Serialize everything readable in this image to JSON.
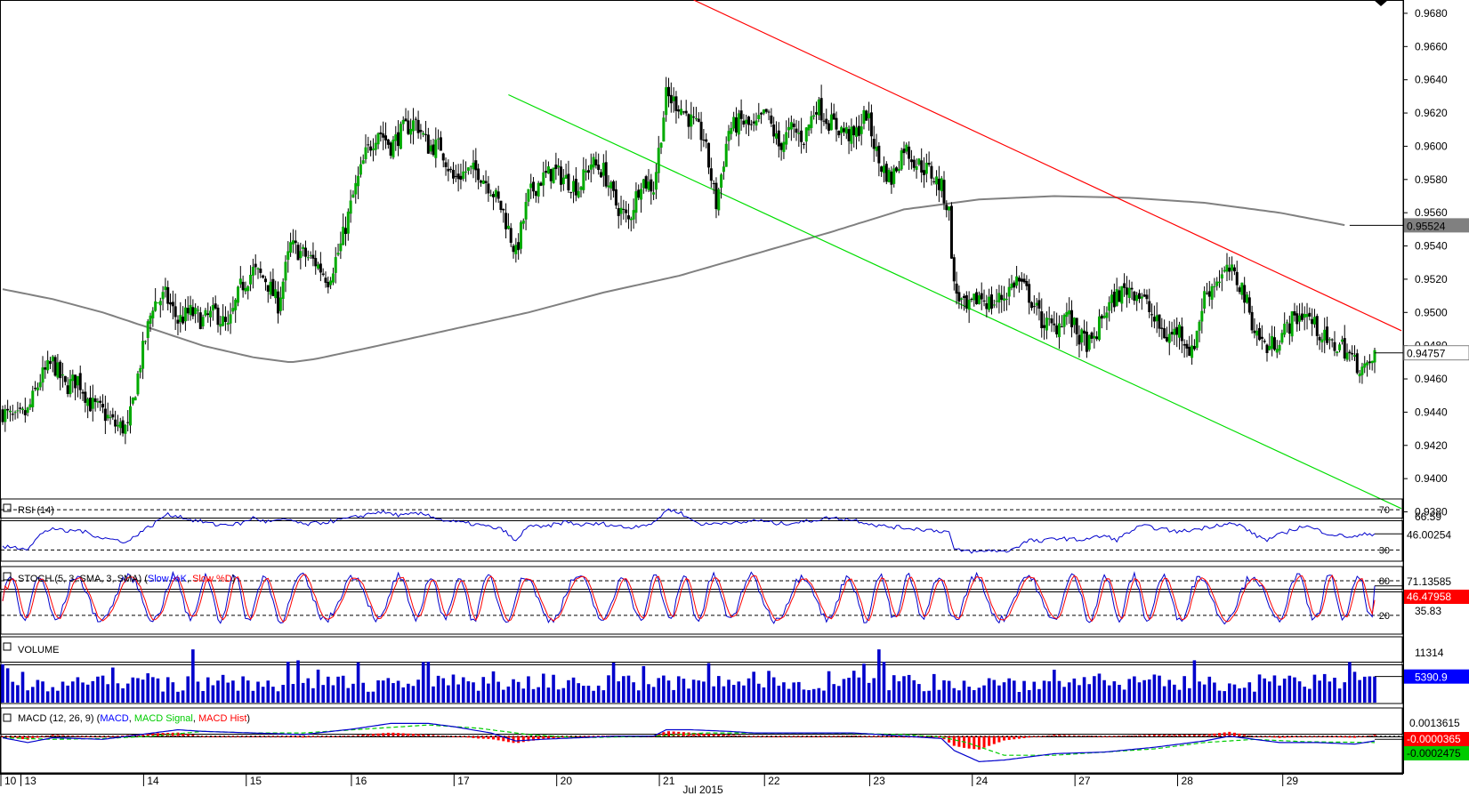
{
  "chart_data": {
    "type": "candlestick",
    "instrument_hint": "",
    "colors": {
      "bull": "#00aa00",
      "bear": "#000000",
      "ma": "#808080",
      "trend_upper": "#ff0000",
      "trend_lower": "#00dd00",
      "rsi": "#0000cc",
      "stoch_k": "#0000cc",
      "stoch_d": "#ff0000",
      "volume": "#0000cc",
      "macd": "#0000cc",
      "macd_signal": "#00cc00",
      "macd_hist": "#ff0000",
      "label_dark": "#404040",
      "label_blue": "#0000ff",
      "label_red": "#ff0000",
      "label_green": "#00cc00"
    },
    "price": {
      "ylim": [
        0.9376,
        0.9688
      ],
      "ticks": [
        "0.9680",
        "0.9660",
        "0.9640",
        "0.9620",
        "0.9600",
        "0.9580",
        "0.9560",
        "0.9540",
        "0.9520",
        "0.9500",
        "0.9480",
        "0.9460",
        "0.9440",
        "0.9420",
        "0.9400",
        "0.9380"
      ],
      "current_label": "0.94757",
      "current_value": 0.94757,
      "ma_label": "0.95524",
      "ma_value": 0.95524,
      "close_path": [
        [
          0,
          0.944
        ],
        [
          5,
          0.9435
        ],
        [
          10,
          0.944
        ],
        [
          15,
          0.946
        ],
        [
          20,
          0.947
        ],
        [
          25,
          0.9455
        ],
        [
          30,
          0.946
        ],
        [
          35,
          0.9445
        ],
        [
          40,
          0.944
        ],
        [
          45,
          0.9432
        ],
        [
          50,
          0.943
        ],
        [
          55,
          0.947
        ],
        [
          60,
          0.9505
        ],
        [
          65,
          0.951
        ],
        [
          70,
          0.9495
        ],
        [
          75,
          0.95
        ],
        [
          80,
          0.9495
        ],
        [
          85,
          0.95
        ],
        [
          90,
          0.949
        ],
        [
          95,
          0.9515
        ],
        [
          100,
          0.9525
        ],
        [
          105,
          0.952
        ],
        [
          110,
          0.9505
        ],
        [
          115,
          0.954
        ],
        [
          120,
          0.9535
        ],
        [
          125,
          0.953
        ],
        [
          130,
          0.952
        ],
        [
          135,
          0.954
        ],
        [
          140,
          0.957
        ],
        [
          145,
          0.9595
        ],
        [
          150,
          0.961
        ],
        [
          155,
          0.96
        ],
        [
          160,
          0.961
        ],
        [
          165,
          0.9615
        ],
        [
          170,
          0.96
        ],
        [
          175,
          0.96
        ],
        [
          180,
          0.958
        ],
        [
          185,
          0.9585
        ],
        [
          190,
          0.9585
        ],
        [
          195,
          0.9575
        ],
        [
          200,
          0.956
        ],
        [
          205,
          0.9535
        ],
        [
          210,
          0.957
        ],
        [
          215,
          0.958
        ],
        [
          220,
          0.9585
        ],
        [
          225,
          0.958
        ],
        [
          230,
          0.9575
        ],
        [
          235,
          0.959
        ],
        [
          240,
          0.9585
        ],
        [
          245,
          0.9565
        ],
        [
          250,
          0.9555
        ],
        [
          255,
          0.958
        ],
        [
          260,
          0.9575
        ],
        [
          265,
          0.963
        ],
        [
          270,
          0.9625
        ],
        [
          275,
          0.9615
        ],
        [
          280,
          0.9605
        ],
        [
          285,
          0.9565
        ],
        [
          290,
          0.961
        ],
        [
          295,
          0.9615
        ],
        [
          300,
          0.961
        ],
        [
          305,
          0.962
        ],
        [
          310,
          0.96
        ],
        [
          315,
          0.961
        ],
        [
          320,
          0.9605
        ],
        [
          325,
          0.9625
        ],
        [
          330,
          0.9615
        ],
        [
          335,
          0.961
        ],
        [
          340,
          0.9605
        ],
        [
          345,
          0.962
        ],
        [
          350,
          0.959
        ],
        [
          355,
          0.958
        ],
        [
          360,
          0.96
        ],
        [
          365,
          0.959
        ],
        [
          370,
          0.9585
        ],
        [
          375,
          0.9575
        ],
        [
          378,
          0.956
        ],
        [
          380,
          0.9515
        ],
        [
          385,
          0.95
        ],
        [
          390,
          0.951
        ],
        [
          395,
          0.9505
        ],
        [
          400,
          0.951
        ],
        [
          405,
          0.952
        ],
        [
          410,
          0.951
        ],
        [
          415,
          0.9495
        ],
        [
          420,
          0.949
        ],
        [
          425,
          0.95
        ],
        [
          430,
          0.9485
        ],
        [
          435,
          0.948
        ],
        [
          440,
          0.95
        ],
        [
          445,
          0.951
        ],
        [
          450,
          0.9515
        ],
        [
          455,
          0.951
        ],
        [
          460,
          0.9495
        ],
        [
          465,
          0.9485
        ],
        [
          470,
          0.949
        ],
        [
          475,
          0.9475
        ],
        [
          480,
          0.951
        ],
        [
          485,
          0.952
        ],
        [
          490,
          0.9525
        ],
        [
          495,
          0.9515
        ],
        [
          500,
          0.949
        ],
        [
          505,
          0.9478
        ],
        [
          510,
          0.9485
        ],
        [
          515,
          0.9495
        ],
        [
          520,
          0.95
        ],
        [
          525,
          0.949
        ],
        [
          530,
          0.948
        ],
        [
          535,
          0.948
        ],
        [
          540,
          0.947
        ],
        [
          545,
          0.9465
        ],
        [
          548,
          0.9475
        ]
      ],
      "ma_path": [
        [
          0,
          0.9514
        ],
        [
          20,
          0.9508
        ],
        [
          40,
          0.95
        ],
        [
          60,
          0.949
        ],
        [
          80,
          0.948
        ],
        [
          100,
          0.9473
        ],
        [
          115,
          0.947
        ],
        [
          125,
          0.9472
        ],
        [
          150,
          0.948
        ],
        [
          180,
          0.949
        ],
        [
          210,
          0.95
        ],
        [
          240,
          0.9512
        ],
        [
          270,
          0.9522
        ],
        [
          300,
          0.9535
        ],
        [
          330,
          0.9548
        ],
        [
          360,
          0.9562
        ],
        [
          390,
          0.9568
        ],
        [
          420,
          0.957
        ],
        [
          450,
          0.9569
        ],
        [
          480,
          0.9566
        ],
        [
          510,
          0.956
        ],
        [
          538,
          0.9552
        ]
      ],
      "trend_upper": [
        [
          276,
          0.9688
        ],
        [
          548,
          0.9489
        ]
      ],
      "trend_lower": [
        [
          202,
          0.9631
        ],
        [
          548,
          0.9382
        ]
      ]
    },
    "rsi": {
      "label": "RSI (14)",
      "ylim": [
        18,
        78
      ],
      "levels": [
        70,
        30
      ],
      "level_labels": [
        "70",
        "30"
      ],
      "marker_label": "66.59",
      "current_label": "46.00254",
      "current_value": 46.0,
      "path": [
        [
          0,
          33
        ],
        [
          10,
          32
        ],
        [
          15,
          45
        ],
        [
          20,
          52
        ],
        [
          25,
          48
        ],
        [
          30,
          50
        ],
        [
          40,
          42
        ],
        [
          45,
          40
        ],
        [
          50,
          38
        ],
        [
          55,
          48
        ],
        [
          60,
          55
        ],
        [
          65,
          65
        ],
        [
          70,
          64
        ],
        [
          75,
          60
        ],
        [
          80,
          58
        ],
        [
          85,
          55
        ],
        [
          95,
          56
        ],
        [
          100,
          62
        ],
        [
          105,
          58
        ],
        [
          115,
          60
        ],
        [
          120,
          55
        ],
        [
          130,
          58
        ],
        [
          140,
          62
        ],
        [
          150,
          68
        ],
        [
          155,
          66
        ],
        [
          160,
          64
        ],
        [
          165,
          66
        ],
        [
          170,
          65
        ],
        [
          175,
          60
        ],
        [
          180,
          58
        ],
        [
          190,
          55
        ],
        [
          200,
          50
        ],
        [
          205,
          38
        ],
        [
          210,
          55
        ],
        [
          215,
          52
        ],
        [
          225,
          58
        ],
        [
          230,
          55
        ],
        [
          240,
          56
        ],
        [
          250,
          52
        ],
        [
          255,
          55
        ],
        [
          260,
          56
        ],
        [
          265,
          70
        ],
        [
          270,
          68
        ],
        [
          275,
          60
        ],
        [
          280,
          55
        ],
        [
          290,
          58
        ],
        [
          295,
          56
        ],
        [
          300,
          60
        ],
        [
          310,
          56
        ],
        [
          320,
          58
        ],
        [
          330,
          62
        ],
        [
          340,
          60
        ],
        [
          350,
          54
        ],
        [
          360,
          52
        ],
        [
          370,
          50
        ],
        [
          378,
          48
        ],
        [
          380,
          30
        ],
        [
          390,
          28
        ],
        [
          395,
          30
        ],
        [
          400,
          28
        ],
        [
          405,
          33
        ],
        [
          410,
          40
        ],
        [
          415,
          38
        ],
        [
          420,
          42
        ],
        [
          430,
          40
        ],
        [
          440,
          44
        ],
        [
          445,
          40
        ],
        [
          450,
          48
        ],
        [
          455,
          54
        ],
        [
          460,
          52
        ],
        [
          470,
          48
        ],
        [
          480,
          52
        ],
        [
          485,
          55
        ],
        [
          490,
          56
        ],
        [
          495,
          54
        ],
        [
          500,
          45
        ],
        [
          505,
          40
        ],
        [
          510,
          45
        ],
        [
          515,
          50
        ],
        [
          520,
          54
        ],
        [
          525,
          50
        ],
        [
          530,
          46
        ],
        [
          535,
          44
        ],
        [
          540,
          43
        ],
        [
          545,
          46
        ],
        [
          548,
          46
        ]
      ]
    },
    "stoch": {
      "label": "STOCH (5, 3, SMA, 3, SMA)",
      "label_k": "Slow %K",
      "label_d": "Slow %D",
      "ylim": [
        -8,
        100
      ],
      "levels": [
        80,
        20
      ],
      "level_labels": [
        "80",
        "20"
      ],
      "marker_label": "35.83",
      "current_k_label": "71.13585",
      "current_d_label": "46.47958",
      "current_k": 71.1,
      "current_d": 46.5
    },
    "volume": {
      "label": "VOLUME",
      "ylim": [
        0,
        12500
      ],
      "tick_label": "11314",
      "current_label": "5390.9",
      "current_value": 5390.9
    },
    "macd": {
      "label": "MACD (12, 26, 9)",
      "label_line": "MACD",
      "label_signal": "MACD Signal",
      "label_hist": "MACD Hist",
      "ylim": [
        -0.0045,
        0.0022
      ],
      "tick_label": "0.0013615",
      "current_label": "-0.0000365",
      "signal_label": "-0.0002475",
      "path": [
        [
          0,
          -0.0002
        ],
        [
          10,
          -0.0008
        ],
        [
          20,
          -0.0002
        ],
        [
          40,
          -0.0004
        ],
        [
          55,
          0.0002
        ],
        [
          70,
          0.0008
        ],
        [
          80,
          0.0006
        ],
        [
          100,
          0.0004
        ],
        [
          120,
          0.0002
        ],
        [
          140,
          0.0009
        ],
        [
          155,
          0.0016
        ],
        [
          170,
          0.0016
        ],
        [
          180,
          0.0012
        ],
        [
          195,
          0.0004
        ],
        [
          205,
          -0.0006
        ],
        [
          215,
          -0.0004
        ],
        [
          230,
          -0.0002
        ],
        [
          245,
          0.0
        ],
        [
          260,
          0.0
        ],
        [
          265,
          0.0008
        ],
        [
          275,
          0.0008
        ],
        [
          290,
          0.0006
        ],
        [
          300,
          0.0004
        ],
        [
          320,
          0.0004
        ],
        [
          340,
          0.0004
        ],
        [
          360,
          0.0
        ],
        [
          375,
          -0.0003
        ],
        [
          380,
          -0.0018
        ],
        [
          390,
          -0.0032
        ],
        [
          400,
          -0.003
        ],
        [
          420,
          -0.0022
        ],
        [
          440,
          -0.002
        ],
        [
          460,
          -0.0014
        ],
        [
          480,
          -0.0006
        ],
        [
          490,
          0.0
        ],
        [
          500,
          -0.0004
        ],
        [
          510,
          -0.0008
        ],
        [
          525,
          -0.0008
        ],
        [
          540,
          -0.001
        ],
        [
          548,
          -0.0006
        ]
      ],
      "signal_path": [
        [
          0,
          -0.0002
        ],
        [
          20,
          -0.0004
        ],
        [
          40,
          -0.0003
        ],
        [
          60,
          0.0
        ],
        [
          80,
          0.0006
        ],
        [
          100,
          0.0004
        ],
        [
          120,
          0.0004
        ],
        [
          150,
          0.001
        ],
        [
          170,
          0.0014
        ],
        [
          190,
          0.001
        ],
        [
          210,
          0.0002
        ],
        [
          230,
          -0.0002
        ],
        [
          260,
          0.0
        ],
        [
          280,
          0.0004
        ],
        [
          300,
          0.0004
        ],
        [
          330,
          0.0004
        ],
        [
          360,
          0.0002
        ],
        [
          375,
          -0.0001
        ],
        [
          385,
          -0.0008
        ],
        [
          400,
          -0.0024
        ],
        [
          420,
          -0.0024
        ],
        [
          440,
          -0.002
        ],
        [
          460,
          -0.0016
        ],
        [
          480,
          -0.0008
        ],
        [
          500,
          -0.0004
        ],
        [
          520,
          -0.0007
        ],
        [
          548,
          -0.0008
        ]
      ]
    },
    "x_axis": {
      "month_label": "Jul 2015",
      "dates": [
        {
          "label": "10",
          "bar": 0
        },
        {
          "label": "13",
          "bar": 8
        },
        {
          "label": "14",
          "bar": 57
        },
        {
          "label": "15",
          "bar": 98
        },
        {
          "label": "16",
          "bar": 140
        },
        {
          "label": "17",
          "bar": 181
        },
        {
          "label": "20",
          "bar": 222
        },
        {
          "label": "21",
          "bar": 263
        },
        {
          "label": "22",
          "bar": 305
        },
        {
          "label": "23",
          "bar": 347
        },
        {
          "label": "24",
          "bar": 388
        },
        {
          "label": "27",
          "bar": 429
        },
        {
          "label": "28",
          "bar": 470
        },
        {
          "label": "29",
          "bar": 512
        }
      ],
      "total_bars": 549
    }
  }
}
